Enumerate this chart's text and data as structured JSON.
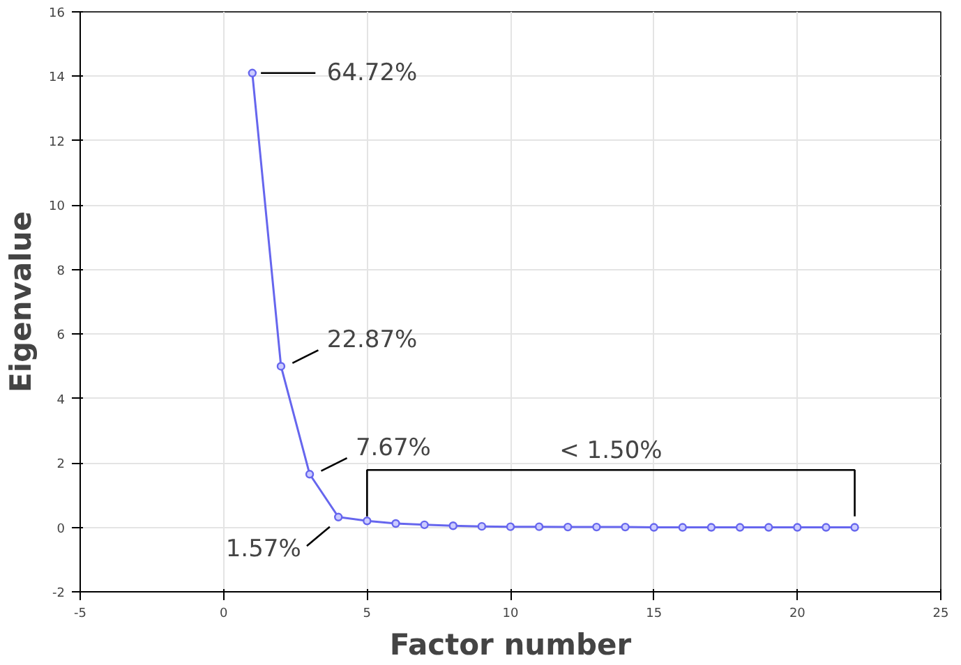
{
  "chart_data": {
    "type": "line",
    "xlabel": "Factor number",
    "ylabel": "Eigenvalue",
    "x": [
      1,
      2,
      3,
      4,
      5,
      6,
      7,
      8,
      9,
      10,
      11,
      12,
      13,
      14,
      15,
      16,
      17,
      18,
      19,
      20,
      21,
      22
    ],
    "series": [
      {
        "color": "#6666ee",
        "values": [
          14.1,
          5.0,
          1.65,
          0.32,
          0.2,
          0.12,
          0.08,
          0.05,
          0.03,
          0.02,
          0.02,
          0.01,
          0.01,
          0.01,
          0.0,
          0.0,
          0.0,
          0.0,
          0.0,
          0.0,
          0.0,
          0.0
        ]
      }
    ],
    "annotations": [
      {
        "text": "64.72%",
        "x": 1,
        "y": 14.1
      },
      {
        "text": "22.87%",
        "x": 2,
        "y": 5.0
      },
      {
        "text": "7.67%",
        "x": 3,
        "y": 1.65
      },
      {
        "text": "1.57%",
        "x": 4,
        "y": 0.32
      },
      "< 1.50%"
    ],
    "xlim": [
      -5,
      25
    ],
    "xticks": [
      -5,
      0,
      5,
      10,
      15,
      20,
      25
    ],
    "ylim": [
      -2,
      16
    ],
    "yticks": [
      -2,
      0,
      2,
      4,
      6,
      8,
      10,
      12,
      14,
      16
    ],
    "grid": true,
    "marker": "circle",
    "line_style": "solid"
  }
}
